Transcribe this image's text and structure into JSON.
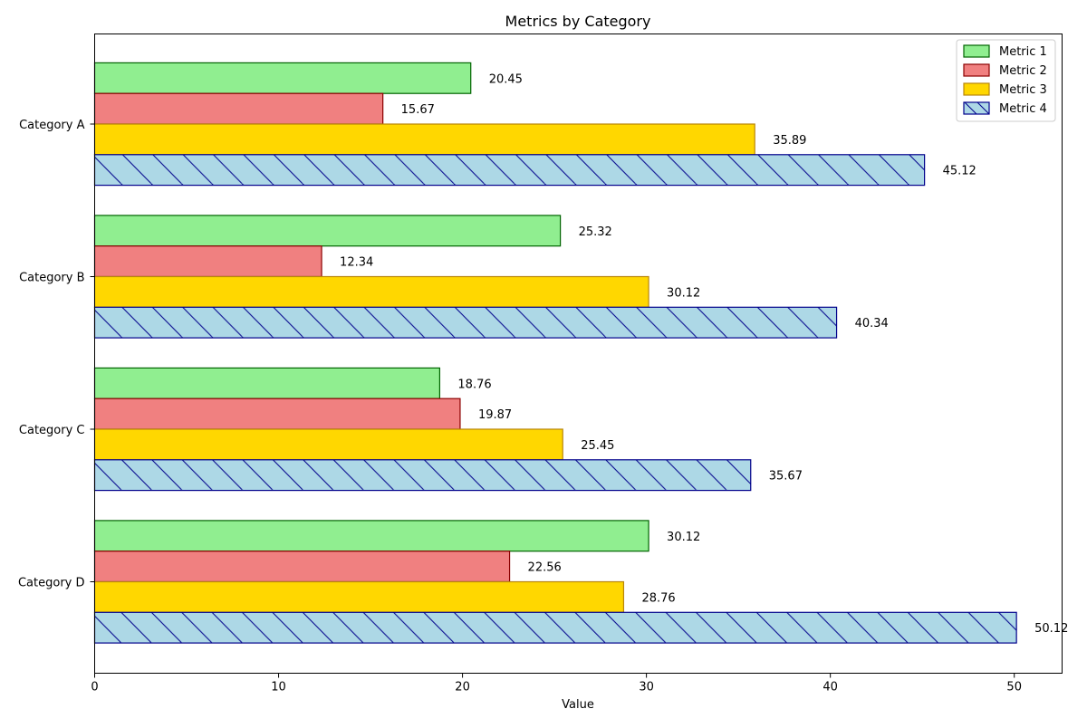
{
  "chart_data": {
    "type": "bar",
    "orientation": "horizontal",
    "title": "Metrics by Category",
    "xlabel": "Value",
    "ylabel": "",
    "categories": [
      "Category A",
      "Category B",
      "Category C",
      "Category D"
    ],
    "xlim": [
      0,
      52.6
    ],
    "xticks": [
      0,
      10,
      20,
      30,
      40,
      50
    ],
    "grid": false,
    "legend_position": "top-right",
    "series": [
      {
        "name": "Metric 1",
        "values": [
          20.45,
          25.32,
          18.76,
          30.12
        ],
        "color": "#90ee90",
        "edge_color": "#006400",
        "hatch": "none"
      },
      {
        "name": "Metric 2",
        "values": [
          15.67,
          12.34,
          19.87,
          22.56
        ],
        "color": "#f08080",
        "edge_color": "#8b0000",
        "hatch": "none"
      },
      {
        "name": "Metric 3",
        "values": [
          35.89,
          30.12,
          25.45,
          28.76
        ],
        "color": "#ffd700",
        "edge_color": "#b8860b",
        "hatch": "none"
      },
      {
        "name": "Metric 4",
        "values": [
          45.12,
          40.34,
          35.67,
          50.12
        ],
        "color": "#add8e6",
        "edge_color": "#00008b",
        "hatch": "backslash"
      }
    ],
    "value_labels": [
      [
        "20.45",
        "25.32",
        "18.76",
        "30.12"
      ],
      [
        "15.67",
        "12.34",
        "19.87",
        "22.56"
      ],
      [
        "35.89",
        "30.12",
        "25.45",
        "28.76"
      ],
      [
        "45.12",
        "40.34",
        "35.67",
        "50.12"
      ]
    ]
  }
}
